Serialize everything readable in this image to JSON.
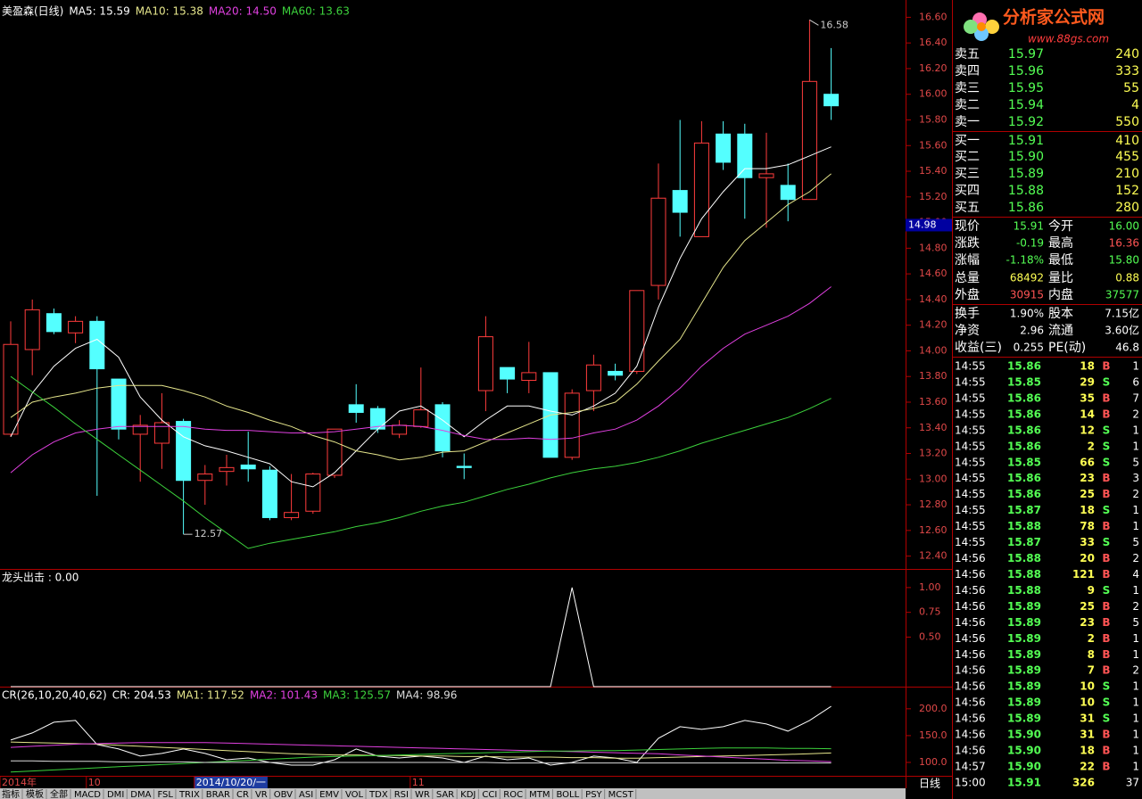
{
  "chart_data": [
    {
      "type": "candlestick",
      "title": "美盈森(日线)",
      "categories": [
        "2014年",
        null,
        null,
        null,
        "10",
        null,
        null,
        null,
        null,
        "2014/10/20/一",
        null,
        null,
        null,
        null,
        null,
        null,
        null,
        null,
        null,
        "11",
        null,
        null,
        null,
        null,
        null,
        null,
        null,
        null,
        null,
        null,
        null,
        null,
        null,
        null,
        null,
        null,
        null,
        null,
        null
      ],
      "open": [
        13.35,
        14.01,
        14.29,
        14.14,
        14.23,
        13.78,
        13.35,
        13.28,
        13.45,
        12.99,
        13.06,
        13.11,
        13.07,
        12.7,
        12.75,
        13.03,
        13.58,
        13.55,
        13.35,
        13.41,
        13.58,
        13.1,
        13.69,
        13.87,
        13.77,
        13.83,
        13.17,
        13.69,
        13.84,
        13.84,
        14.51,
        15.25,
        14.89,
        15.69,
        15.69,
        15.35,
        15.29,
        15.18,
        16.0
      ],
      "high": [
        14.23,
        14.4,
        14.33,
        14.27,
        14.27,
        13.78,
        13.5,
        13.67,
        13.47,
        13.11,
        13.19,
        13.37,
        13.1,
        13.04,
        13.05,
        13.39,
        13.74,
        13.57,
        13.46,
        13.87,
        13.6,
        13.2,
        14.27,
        13.87,
        14.07,
        13.83,
        13.7,
        13.97,
        13.9,
        14.47,
        15.46,
        15.8,
        15.79,
        15.79,
        15.77,
        15.7,
        15.46,
        16.58,
        16.36
      ],
      "low": [
        13.33,
        13.81,
        14.13,
        14.06,
        12.87,
        13.31,
        12.98,
        13.08,
        12.57,
        12.8,
        12.95,
        12.98,
        12.68,
        12.68,
        12.73,
        13.01,
        13.44,
        13.36,
        13.32,
        13.4,
        13.17,
        13.0,
        13.53,
        13.67,
        13.67,
        13.17,
        13.15,
        13.53,
        13.77,
        13.82,
        14.4,
        14.89,
        14.89,
        15.41,
        15.03,
        14.96,
        15.01,
        15.18,
        15.8
      ],
      "close": [
        14.05,
        14.32,
        14.15,
        14.23,
        13.86,
        13.39,
        13.42,
        13.44,
        12.99,
        13.04,
        13.09,
        13.08,
        12.7,
        12.74,
        13.04,
        13.39,
        13.52,
        13.39,
        13.42,
        13.54,
        13.22,
        13.09,
        14.11,
        13.78,
        13.83,
        13.17,
        13.67,
        13.89,
        13.81,
        14.47,
        15.19,
        15.08,
        15.62,
        15.47,
        15.35,
        15.38,
        15.18,
        16.1,
        15.91
      ],
      "up_color": "#ff3c3c",
      "down_color": "#54ffff",
      "series": [
        {
          "name": "MA5: 15.59",
          "color": "#ffffff",
          "values": [
            13.33,
            13.67,
            13.88,
            14.02,
            14.09,
            13.95,
            13.64,
            13.46,
            13.33,
            13.26,
            13.22,
            13.17,
            13.12,
            12.98,
            12.94,
            13.05,
            13.22,
            13.39,
            13.53,
            13.57,
            13.46,
            13.33,
            13.46,
            13.57,
            13.57,
            13.53,
            13.5,
            13.57,
            13.67,
            13.88,
            14.34,
            14.72,
            15.03,
            15.24,
            15.42,
            15.42,
            15.45,
            15.52,
            15.59
          ]
        },
        {
          "name": "MA10: 15.38",
          "color": "#e6e68c",
          "values": [
            13.48,
            13.6,
            13.64,
            13.67,
            13.71,
            13.73,
            13.73,
            13.73,
            13.69,
            13.64,
            13.57,
            13.52,
            13.46,
            13.41,
            13.34,
            13.29,
            13.22,
            13.19,
            13.15,
            13.17,
            13.21,
            13.22,
            13.29,
            13.36,
            13.43,
            13.5,
            13.52,
            13.55,
            13.6,
            13.74,
            13.92,
            14.09,
            14.37,
            14.65,
            14.86,
            15.0,
            15.14,
            15.24,
            15.38
          ]
        },
        {
          "name": "MA20: 14.50",
          "color": "#e040e0",
          "values": [
            13.05,
            13.19,
            13.29,
            13.36,
            13.39,
            13.41,
            13.41,
            13.41,
            13.41,
            13.39,
            13.38,
            13.38,
            13.37,
            13.36,
            13.36,
            13.37,
            13.39,
            13.41,
            13.42,
            13.41,
            13.38,
            13.34,
            13.31,
            13.31,
            13.32,
            13.31,
            13.32,
            13.36,
            13.39,
            13.46,
            13.57,
            13.71,
            13.88,
            14.02,
            14.13,
            14.2,
            14.27,
            14.37,
            14.5
          ]
        },
        {
          "name": "MA60: 13.63",
          "color": "#3cd23c",
          "values": [
            13.8,
            13.68,
            13.56,
            13.43,
            13.31,
            13.19,
            13.07,
            12.95,
            12.83,
            12.7,
            12.58,
            12.46,
            12.5,
            12.53,
            12.56,
            12.59,
            12.63,
            12.66,
            12.7,
            12.75,
            12.79,
            12.82,
            12.87,
            12.92,
            12.96,
            13.01,
            13.05,
            13.08,
            13.1,
            13.13,
            13.17,
            13.22,
            13.28,
            13.33,
            13.38,
            13.43,
            13.48,
            13.55,
            13.63
          ]
        }
      ],
      "annotations": [
        {
          "value": 16.58,
          "label": "16.58"
        },
        {
          "value": 12.57,
          "label": "12.57"
        }
      ],
      "cursor_price": {
        "value": 14.98,
        "label": "14.98"
      },
      "ylim": [
        12.3,
        16.7
      ],
      "yticks": [
        {
          "value": 12.4,
          "label": "12.40"
        },
        {
          "value": 12.6,
          "label": "12.60"
        },
        {
          "value": 12.8,
          "label": "12.80"
        },
        {
          "value": 13.0,
          "label": "13.00"
        },
        {
          "value": 13.2,
          "label": "13.20"
        },
        {
          "value": 13.4,
          "label": "13.40"
        },
        {
          "value": 13.6,
          "label": "13.60"
        },
        {
          "value": 13.8,
          "label": "13.80"
        },
        {
          "value": 14.0,
          "label": "14.00"
        },
        {
          "value": 14.2,
          "label": "14.20"
        },
        {
          "value": 14.4,
          "label": "14.40"
        },
        {
          "value": 14.6,
          "label": "14.60"
        },
        {
          "value": 14.8,
          "label": "14.80"
        },
        {
          "value": 15.0,
          "label": "15.00"
        },
        {
          "value": 15.2,
          "label": "15.20"
        },
        {
          "value": 15.4,
          "label": "15.40"
        },
        {
          "value": 15.6,
          "label": "15.60"
        },
        {
          "value": 15.8,
          "label": "15.80"
        },
        {
          "value": 16.0,
          "label": "16.00"
        },
        {
          "value": 16.2,
          "label": "16.20"
        },
        {
          "value": 16.4,
          "label": "16.40"
        },
        {
          "value": 16.6,
          "label": "16.60"
        }
      ]
    },
    {
      "type": "line",
      "title": "龙头出击 : 0.00",
      "series": [
        {
          "name": null,
          "color": "#ffffff",
          "values": [
            0,
            0,
            0,
            0,
            0,
            0,
            0,
            0,
            0,
            0,
            0,
            0,
            0,
            0,
            0,
            0,
            0,
            0,
            0,
            0,
            0,
            0,
            0,
            0,
            0,
            0,
            1,
            0,
            0,
            0,
            0,
            0,
            0,
            0,
            0,
            0,
            0,
            0,
            0
          ]
        }
      ],
      "ylim": [
        0,
        1.17
      ],
      "yticks": [
        {
          "value": 0.5,
          "label": "0.50"
        },
        {
          "value": 0.75,
          "label": "0.75"
        },
        {
          "value": 1.0,
          "label": "1.00"
        }
      ]
    },
    {
      "type": "line",
      "title": "CR(26,10,20,40,62)",
      "series": [
        {
          "name": "CR: 204.53",
          "color": "#ffffff",
          "values": [
            141.7,
            155,
            175,
            178.3,
            133.3,
            125,
            111.7,
            116.7,
            125,
            116.7,
            105,
            108.3,
            100,
            95,
            95,
            105,
            125,
            111.7,
            108.3,
            111.7,
            108.3,
            100,
            111.7,
            105,
            108.3,
            95,
            100,
            111.7,
            108.3,
            100,
            145,
            166.7,
            161.7,
            166.7,
            178.3,
            171.7,
            158.3,
            178.3,
            204.53
          ]
        },
        {
          "name": "MA1: 117.52",
          "color": "#e6e68c",
          "values": [
            138,
            137,
            136,
            135,
            134,
            132,
            130,
            128,
            126,
            124,
            122,
            120,
            118,
            116,
            115,
            114,
            114,
            113,
            113,
            112,
            112,
            111,
            111,
            110,
            110,
            110,
            109,
            109,
            108,
            108,
            109,
            110,
            111,
            112,
            113,
            114,
            115,
            116,
            117.52
          ]
        },
        {
          "name": "MA2: 101.43",
          "color": "#e040e0",
          "values": [
            128,
            130,
            132,
            134,
            135,
            136,
            137,
            137,
            137,
            137,
            136,
            135,
            134,
            133,
            132,
            131,
            130,
            129,
            128,
            127,
            126,
            125,
            124,
            123,
            122,
            121,
            120,
            119,
            118,
            117,
            116,
            114,
            112,
            110,
            108,
            106,
            104,
            103,
            101.43
          ]
        },
        {
          "name": "MA3: 125.57",
          "color": "#3cd23c",
          "values": [
            82,
            84,
            86,
            88,
            90,
            92,
            94,
            96,
            98,
            100,
            102,
            104,
            106,
            108,
            110,
            111,
            112,
            113,
            114,
            115,
            116,
            117,
            118,
            119,
            120,
            121,
            121,
            122,
            122,
            123,
            124,
            125,
            126,
            127,
            127,
            127,
            126,
            126,
            125.57
          ]
        },
        {
          "name": "MA4: 98.96",
          "color": "#dcdcdc",
          "values": [
            103,
            103,
            102,
            102,
            102,
            101,
            101,
            101,
            101,
            100,
            100,
            100,
            100,
            100,
            100,
            100,
            100,
            100,
            100,
            100,
            100,
            100,
            100,
            99,
            99,
            99,
            99,
            99,
            99,
            99,
            99,
            99,
            99,
            99,
            99,
            99,
            99,
            99,
            98.96
          ]
        }
      ],
      "ylim": [
        75,
        238
      ],
      "yticks": [
        {
          "value": 100,
          "label": "100.0"
        },
        {
          "value": 150,
          "label": "150.0"
        },
        {
          "value": 200,
          "label": "200.0"
        }
      ]
    }
  ],
  "logo": {
    "title": "分析家公式网",
    "url": "www.88gs.com"
  },
  "period_label": "日线",
  "tabs": [
    "指标",
    "模板",
    "全部",
    "MACD",
    "DMI",
    "DMA",
    "FSL",
    "TRIX",
    "BRAR",
    "CR",
    "VR",
    "OBV",
    "ASI",
    "EMV",
    "VOL",
    "TDX",
    "RSI",
    "WR",
    "SAR",
    "KDJ",
    "CCI",
    "ROC",
    "MTM",
    "BOLL",
    "PSY",
    "MCST"
  ],
  "order_book": [
    [
      "卖五",
      "15.97",
      "240"
    ],
    [
      "卖四",
      "15.96",
      "333"
    ],
    [
      "卖三",
      "15.95",
      "55"
    ],
    [
      "卖二",
      "15.94",
      "4"
    ],
    [
      "卖一",
      "15.92",
      "550"
    ],
    [
      "买一",
      "15.91",
      "410"
    ],
    [
      "买二",
      "15.90",
      "455"
    ],
    [
      "买三",
      "15.89",
      "210"
    ],
    [
      "买四",
      "15.88",
      "152"
    ],
    [
      "买五",
      "15.86",
      "280"
    ]
  ],
  "quote": [
    [
      "现价",
      "15.91",
      "今开",
      "16.00"
    ],
    [
      "涨跌",
      "-0.19",
      "最高",
      "16.36"
    ],
    [
      "涨幅",
      "-1.18%",
      "最低",
      "15.80"
    ],
    [
      "总量",
      "68492",
      "量比",
      "0.88"
    ],
    [
      "外盘",
      "30915",
      "内盘",
      "37577"
    ],
    [
      "换手",
      "1.90%",
      "股本",
      "7.15亿"
    ],
    [
      "净资",
      "2.96",
      "流通",
      "3.60亿"
    ],
    [
      "收益(三)",
      "0.255",
      "PE(动)",
      "46.8"
    ]
  ],
  "trades": [
    [
      "14:55",
      "15.86",
      "18",
      "B",
      "1"
    ],
    [
      "14:55",
      "15.85",
      "29",
      "S",
      "6"
    ],
    [
      "14:55",
      "15.86",
      "35",
      "B",
      "7"
    ],
    [
      "14:55",
      "15.86",
      "14",
      "B",
      "2"
    ],
    [
      "14:55",
      "15.86",
      "12",
      "S",
      "1"
    ],
    [
      "14:55",
      "15.86",
      "2",
      "S",
      "1"
    ],
    [
      "14:55",
      "15.85",
      "66",
      "S",
      "5"
    ],
    [
      "14:55",
      "15.86",
      "23",
      "B",
      "3"
    ],
    [
      "14:55",
      "15.86",
      "25",
      "B",
      "2"
    ],
    [
      "14:55",
      "15.87",
      "18",
      "S",
      "1"
    ],
    [
      "14:55",
      "15.88",
      "78",
      "B",
      "1"
    ],
    [
      "14:55",
      "15.87",
      "33",
      "S",
      "5"
    ],
    [
      "14:56",
      "15.88",
      "20",
      "B",
      "2"
    ],
    [
      "14:56",
      "15.88",
      "121",
      "B",
      "4"
    ],
    [
      "14:56",
      "15.88",
      "9",
      "S",
      "1"
    ],
    [
      "14:56",
      "15.89",
      "25",
      "B",
      "2"
    ],
    [
      "14:56",
      "15.89",
      "23",
      "B",
      "5"
    ],
    [
      "14:56",
      "15.89",
      "2",
      "B",
      "1"
    ],
    [
      "14:56",
      "15.89",
      "8",
      "B",
      "1"
    ],
    [
      "14:56",
      "15.89",
      "7",
      "B",
      "2"
    ],
    [
      "14:56",
      "15.89",
      "10",
      "S",
      "1"
    ],
    [
      "14:56",
      "15.89",
      "10",
      "S",
      "1"
    ],
    [
      "14:56",
      "15.89",
      "31",
      "S",
      "1"
    ],
    [
      "14:56",
      "15.90",
      "31",
      "B",
      "1"
    ],
    [
      "14:56",
      "15.90",
      "18",
      "B",
      "1"
    ],
    [
      "14:57",
      "15.90",
      "22",
      "B",
      "1"
    ],
    [
      "15:00",
      "15.91",
      "326",
      null,
      "37"
    ]
  ]
}
